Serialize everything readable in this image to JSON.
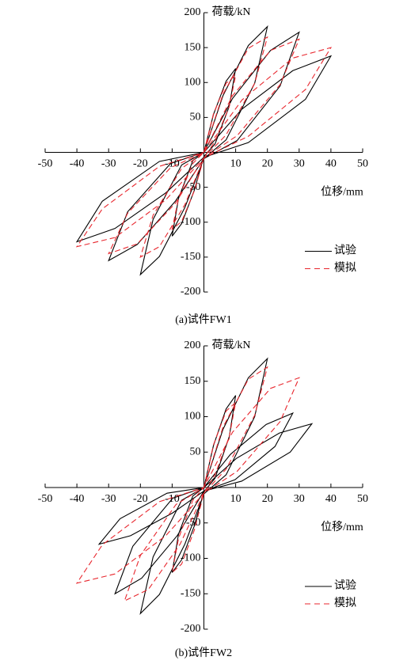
{
  "chart_data": [
    {
      "type": "line",
      "caption": "(a)试件FW1",
      "xlabel": "位移/mm",
      "ylabel": "荷载/kN",
      "xlim": [
        -50,
        50
      ],
      "ylim": [
        -200,
        200
      ],
      "xticks": [
        -50,
        -40,
        -30,
        -20,
        -10,
        10,
        20,
        30,
        40,
        50
      ],
      "yticks": [
        -200,
        -150,
        -100,
        -50,
        50,
        100,
        150,
        200
      ],
      "legend": "lower right",
      "series": [
        {
          "name": "试验",
          "color": "#000000",
          "linestyle": "solid",
          "x": [
            0,
            3,
            7,
            10,
            8,
            3.5,
            0,
            -3,
            -7,
            -10,
            -8,
            -3.5,
            0,
            6,
            14,
            20,
            16,
            7,
            0,
            -6,
            -14,
            -20,
            -16,
            -7,
            0,
            9,
            21,
            30,
            24,
            10.5,
            0,
            -9,
            -21,
            -30,
            -24,
            -10.5,
            0,
            12,
            28,
            40,
            32,
            14,
            0,
            -12,
            -28,
            -40,
            -32,
            -14,
            0
          ],
          "values": [
            0,
            54,
            102,
            120,
            66,
            12,
            -6,
            -54,
            -102,
            -120,
            -66,
            -12,
            0,
            81,
            153,
            180,
            99,
            18,
            -9,
            -79,
            -149,
            -175,
            -96,
            -18,
            0,
            77,
            146,
            172,
            95,
            17,
            -9,
            -70,
            -132,
            -155,
            -85,
            -16,
            0,
            62,
            117,
            138,
            76,
            14,
            -7,
            -58,
            -109,
            -128,
            -70,
            -13,
            0
          ]
        },
        {
          "name": "模拟",
          "color": "#e8262d",
          "linestyle": "dashed",
          "x": [
            0,
            3,
            7,
            10,
            8,
            3.5,
            0,
            -3,
            -7,
            -10,
            -8,
            -3.5,
            0,
            6,
            14,
            20,
            16,
            7,
            0,
            -6,
            -14,
            -20,
            -16,
            -7,
            0,
            9,
            21,
            30,
            24,
            10.5,
            0,
            -9,
            -21,
            -30,
            -24,
            -10.5,
            0,
            12,
            28,
            40,
            32,
            14,
            0,
            -12,
            -28,
            -40,
            -32,
            -14,
            0
          ],
          "values": [
            0,
            55,
            99,
            110,
            66,
            16,
            -8,
            -55,
            -99,
            -110,
            -66,
            -16,
            0,
            83,
            149,
            165,
            99,
            25,
            -8,
            -75,
            -135,
            -150,
            -90,
            -23,
            0,
            81,
            146,
            162,
            97,
            24,
            -8,
            -73,
            -131,
            -145,
            -87,
            -22,
            0,
            75,
            135,
            150,
            90,
            23,
            -8,
            -68,
            -122,
            -135,
            -81,
            -20,
            0
          ]
        }
      ]
    },
    {
      "type": "line",
      "caption": "(b)试件FW2",
      "xlabel": "位移/mm",
      "ylabel": "荷载/kN",
      "xlim": [
        -50,
        50
      ],
      "ylim": [
        -200,
        200
      ],
      "xticks": [
        -50,
        -40,
        -30,
        -20,
        -10,
        10,
        20,
        30,
        40,
        50
      ],
      "yticks": [
        -200,
        -150,
        -100,
        -50,
        50,
        100,
        150,
        200
      ],
      "legend": "lower right",
      "series": [
        {
          "name": "试验",
          "color": "#000000",
          "linestyle": "solid",
          "x": [
            0,
            3,
            7,
            10,
            8,
            3.5,
            0,
            -3,
            -7,
            -10,
            -8,
            -3.5,
            0,
            6,
            14,
            20,
            16,
            7,
            0,
            -6,
            -14,
            -20,
            -16,
            -7,
            0,
            8.4,
            19.6,
            28,
            22.4,
            9.8,
            0,
            -8.4,
            -19.6,
            -28,
            -22.4,
            -9.8,
            0,
            10.2,
            23.8,
            34,
            27.2,
            11.9,
            0,
            -9.9,
            -23.1,
            -33,
            -26.4,
            -11.6,
            0
          ],
          "values": [
            0,
            59,
            111,
            130,
            72,
            13,
            -6,
            -54,
            -102,
            -120,
            -66,
            -12,
            0,
            82,
            155,
            182,
            100,
            18,
            -9,
            -80,
            -151,
            -178,
            -98,
            -18,
            0,
            47,
            89,
            105,
            58,
            11,
            -5,
            -68,
            -128,
            -150,
            -83,
            -15,
            0,
            41,
            77,
            90,
            50,
            9,
            -5,
            -36,
            -68,
            -80,
            -44,
            -8,
            0
          ]
        },
        {
          "name": "模拟",
          "color": "#e8262d",
          "linestyle": "dashed",
          "x": [
            0,
            3,
            7,
            10,
            8,
            3.5,
            0,
            -3,
            -7,
            -10,
            -8,
            -3.5,
            0,
            6,
            14,
            20,
            16,
            7,
            0,
            -7.5,
            -17.5,
            -25,
            -20,
            -8.8,
            0,
            9,
            21,
            30,
            24,
            10.5,
            0,
            -12,
            -28,
            -40,
            -32,
            -14,
            0
          ],
          "values": [
            0,
            60,
            108,
            120,
            72,
            18,
            -8,
            -60,
            -108,
            -120,
            -72,
            -18,
            0,
            85,
            153,
            170,
            102,
            26,
            -8,
            -80,
            -144,
            -160,
            -96,
            -24,
            0,
            78,
            140,
            155,
            93,
            23,
            -8,
            -68,
            -122,
            -135,
            -81,
            -20,
            0
          ]
        }
      ]
    }
  ]
}
